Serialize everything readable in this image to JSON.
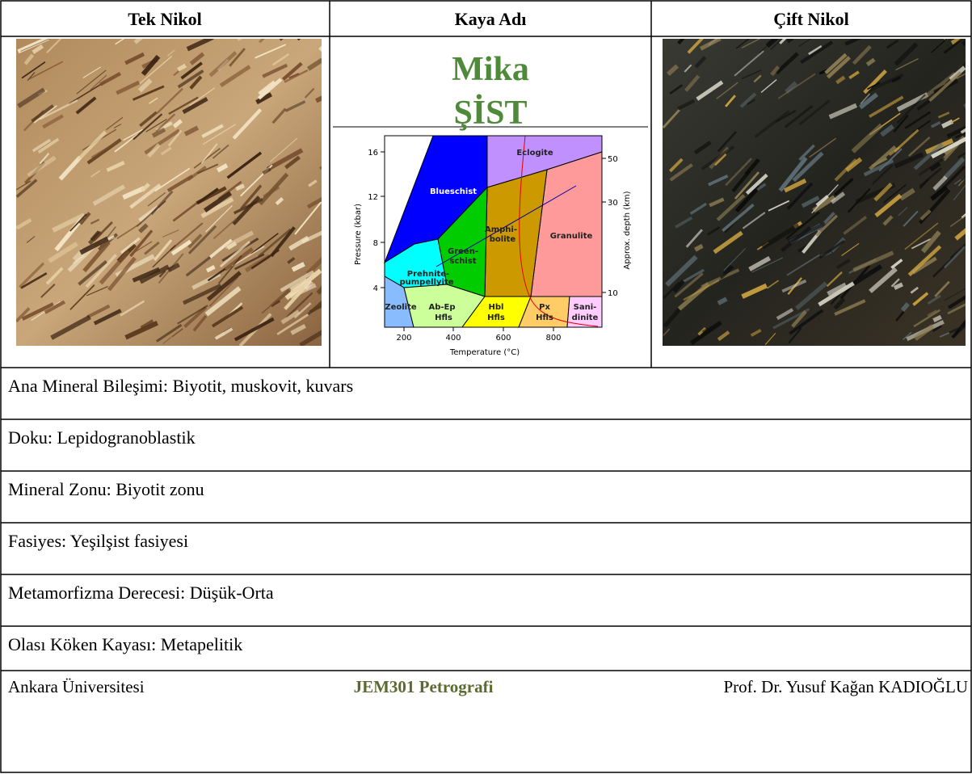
{
  "header": {
    "col1": "Tek Nikol",
    "col2": "Kaya Adı",
    "col3": "Çift Nikol"
  },
  "rock_name": [
    "Mika",
    "ŞİST"
  ],
  "diagram": {
    "x_label": "Temperature (°C)",
    "y_label": "Pressure (kbar)",
    "y2_label": "Approx. depth (km)",
    "x_ticks": [
      200,
      400,
      600,
      800
    ],
    "y_ticks": [
      16,
      12,
      8,
      4
    ],
    "y2_ticks": [
      50,
      30,
      10
    ],
    "facies": [
      {
        "lines": [
          "Eclogite"
        ]
      },
      {
        "lines": [
          "Blueschist"
        ]
      },
      {
        "lines": [
          "Amphi-",
          "bolite"
        ]
      },
      {
        "lines": [
          "Granulite"
        ]
      },
      {
        "lines": [
          "Green-",
          "schist"
        ]
      },
      {
        "lines": [
          "Prehnite-",
          "pumpellyite"
        ]
      },
      {
        "lines": [
          "Zeolite"
        ]
      },
      {
        "lines": [
          "Ab-Ep",
          "Hfls"
        ]
      },
      {
        "lines": [
          "Hbl",
          "Hfls"
        ]
      },
      {
        "lines": [
          "Px",
          "Hfls"
        ]
      },
      {
        "lines": [
          "Sani-",
          "dinite"
        ]
      }
    ]
  },
  "rows": [
    "Ana Mineral Bileşimi: Biyotit, muskovit, kuvars",
    "Doku: Lepidogranoblastik",
    "Mineral Zonu: Biyotit zonu",
    "Fasiyes: Yeşilşist fasiyesi",
    "Metamorfizma Derecesi: Düşük-Orta",
    "Olası Köken Kayası: Metapelitik"
  ],
  "footer": {
    "left": "Ankara Üniversitesi",
    "center": "JEM301 Petrografi",
    "right": "Prof. Dr. Yusuf Kağan KADIOĞLU"
  }
}
